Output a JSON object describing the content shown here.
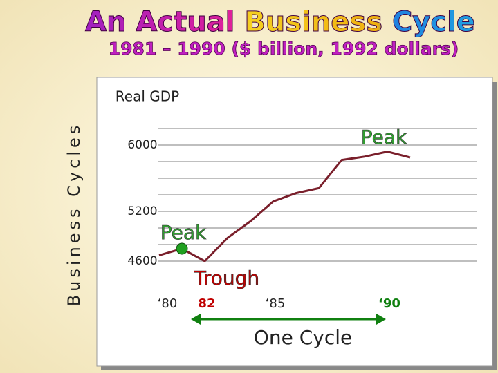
{
  "chart_data": {
    "type": "line",
    "title": "An Actual Business Cycle",
    "subtitle": "1981 – 1990   ($ billion, 1992 dollars)",
    "side_label": "Business Cycles",
    "y_label": "Real GDP",
    "x": [
      1980,
      1981,
      1982,
      1983,
      1984,
      1985,
      1986,
      1987,
      1988,
      1989,
      1990,
      1991
    ],
    "values": [
      4670,
      4750,
      4600,
      4880,
      5080,
      5320,
      5420,
      5480,
      5820,
      5860,
      5920,
      5850
    ],
    "color": "#7a1f2b",
    "xlim": [
      1980,
      1991
    ],
    "ylim": [
      4400,
      6400
    ],
    "yticks": [
      4600,
      5200,
      6000
    ],
    "ygrid": [
      4600,
      4800,
      5000,
      5200,
      5400,
      5600,
      5800,
      6000,
      6200
    ],
    "xticks": [
      {
        "value": 1980,
        "label": "‘80"
      },
      {
        "value": 1982,
        "label": "82"
      },
      {
        "value": 1985,
        "label": "‘85"
      },
      {
        "value": 1990,
        "label": "‘90"
      }
    ],
    "annotations": [
      "Peak",
      "Peak",
      "Trough",
      "One Cycle"
    ]
  }
}
